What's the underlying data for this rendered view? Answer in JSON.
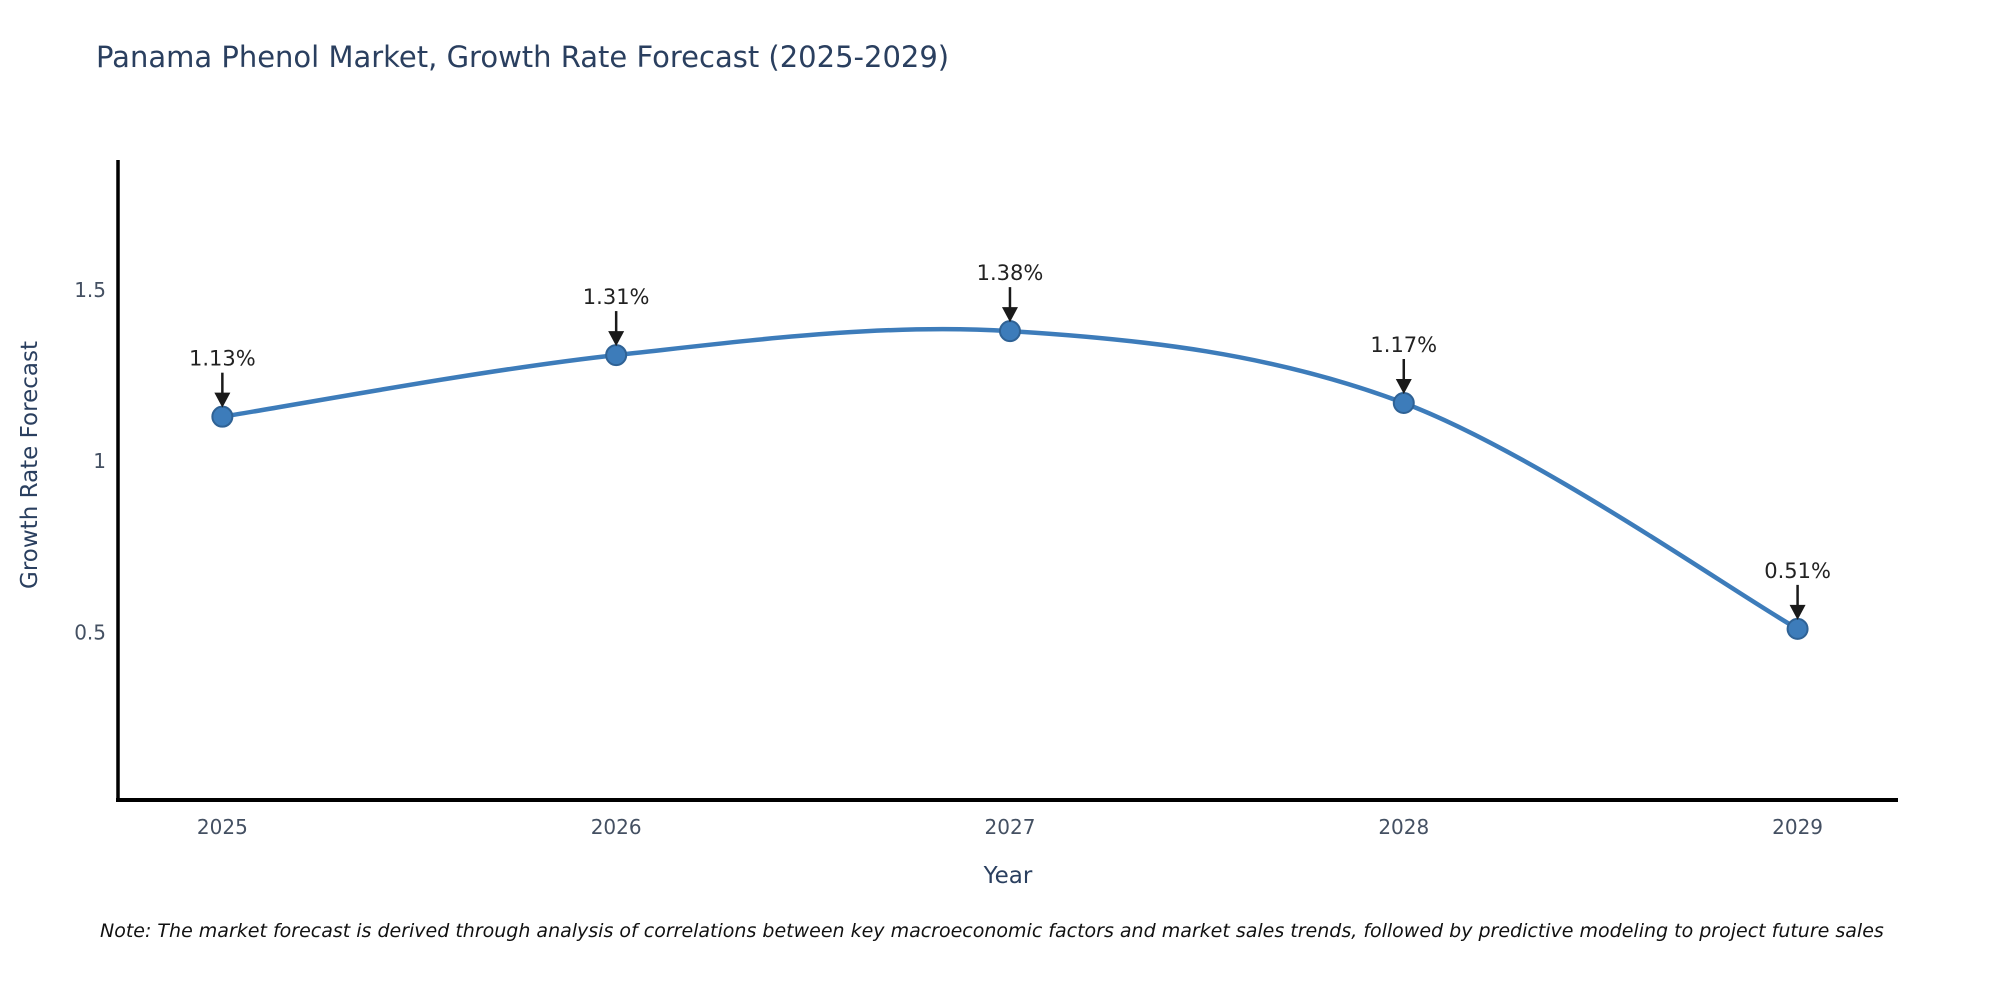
{
  "title": "Panama Phenol Market, Growth Rate Forecast (2025-2029)",
  "note": "Note: The market forecast is derived through analysis of correlations between key macroeconomic factors and market sales trends, followed by predictive modeling to project future sales",
  "chart_data": {
    "type": "line",
    "title": "Panama Phenol Market, Growth Rate Forecast (2025-2029)",
    "xlabel": "Year",
    "ylabel": "Growth Rate Forecast",
    "x": [
      2025,
      2026,
      2027,
      2028,
      2029
    ],
    "categories": [
      "2025",
      "2026",
      "2027",
      "2028",
      "2029"
    ],
    "series": [
      {
        "name": "Growth Rate Forecast",
        "values": [
          1.13,
          1.31,
          1.38,
          1.17,
          0.51
        ]
      }
    ],
    "point_labels": [
      "1.13%",
      "1.31%",
      "1.38%",
      "1.17%",
      "0.51%"
    ],
    "yticks": [
      0.5,
      1,
      1.5
    ],
    "ytick_labels": [
      "0.5",
      "1",
      "1.5"
    ],
    "ylim": [
      0.01,
      1.88
    ],
    "xlim": [
      2024.735,
      2029.255
    ],
    "grid": false,
    "legend": "none",
    "line_shape": "spline",
    "colors": {
      "line": "#3d7cba",
      "marker": "#3d7cba",
      "marker_edge": "#2f6295",
      "annotation": "#222222",
      "arrow": "#1a1a1a",
      "axis": "#000000",
      "title": "#2a3f5f",
      "tick": "#445062"
    }
  }
}
